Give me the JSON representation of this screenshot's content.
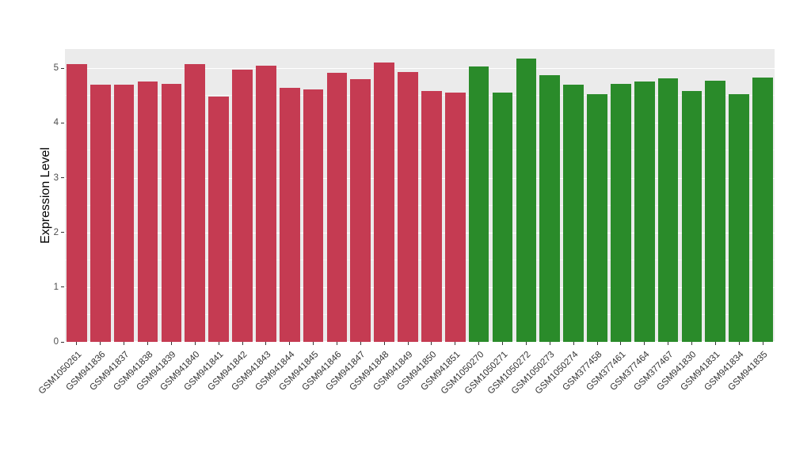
{
  "chart_data": {
    "type": "bar",
    "title": "",
    "xlabel": "",
    "ylabel": "Expression Level",
    "ylim": [
      0,
      5.35
    ],
    "yticks": [
      0,
      1,
      2,
      3,
      4,
      5
    ],
    "grid": true,
    "legend_position": "none",
    "panel_background": "#EBEBEB",
    "grid_major_color": "#FFFFFF",
    "categories": [
      "GSM1050261",
      "GSM941836",
      "GSM941837",
      "GSM941838",
      "GSM941839",
      "GSM941840",
      "GSM941841",
      "GSM941842",
      "GSM941843",
      "GSM941844",
      "GSM941845",
      "GSM941846",
      "GSM941847",
      "GSM941848",
      "GSM941849",
      "GSM941850",
      "GSM941851",
      "GSM1050270",
      "GSM1050271",
      "GSM1050272",
      "GSM1050273",
      "GSM1050274",
      "GSM377458",
      "GSM377461",
      "GSM377464",
      "GSM377467",
      "GSM941830",
      "GSM941831",
      "GSM941834",
      "GSM941835"
    ],
    "values": [
      5.07,
      4.7,
      4.7,
      4.76,
      4.72,
      5.08,
      4.48,
      4.98,
      5.04,
      4.64,
      4.61,
      4.91,
      4.8,
      5.11,
      4.93,
      4.59,
      4.55,
      5.03,
      4.55,
      5.17,
      4.88,
      4.7,
      4.52,
      4.71,
      4.76,
      4.82,
      4.58,
      4.77,
      4.52,
      4.83
    ],
    "bar_colors": [
      "#C53B52",
      "#C53B52",
      "#C53B52",
      "#C53B52",
      "#C53B52",
      "#C53B52",
      "#C53B52",
      "#C53B52",
      "#C53B52",
      "#C53B52",
      "#C53B52",
      "#C53B52",
      "#C53B52",
      "#C53B52",
      "#C53B52",
      "#C53B52",
      "#C53B52",
      "#2A8B2A",
      "#2A8B2A",
      "#2A8B2A",
      "#2A8B2A",
      "#2A8B2A",
      "#2A8B2A",
      "#2A8B2A",
      "#2A8B2A",
      "#2A8B2A",
      "#2A8B2A",
      "#2A8B2A",
      "#2A8B2A",
      "#2A8B2A"
    ],
    "group_colors": {
      "left_group": "#C53B52",
      "right_group": "#2A8B2A"
    }
  }
}
